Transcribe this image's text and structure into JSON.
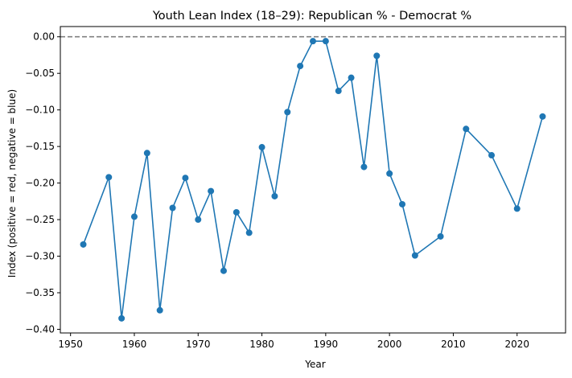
{
  "chart_data": {
    "type": "line",
    "title": "Youth Lean Index (18–29): Republican % - Democrat %",
    "xlabel": "Year",
    "ylabel": "Index (positive = red, negative = blue)",
    "xlim": [
      1948.4,
      2027.6
    ],
    "ylim": [
      -0.405,
      0.014
    ],
    "xticks": [
      1950,
      1960,
      1970,
      1980,
      1990,
      2000,
      2010,
      2020
    ],
    "yticks": [
      0.0,
      -0.05,
      -0.1,
      -0.15,
      -0.2,
      -0.25,
      -0.3,
      -0.35,
      -0.4
    ],
    "ytick_labels": [
      "0.00",
      "−0.05",
      "−0.10",
      "−0.15",
      "−0.20",
      "−0.25",
      "−0.30",
      "−0.35",
      "−0.40"
    ],
    "reference_line": {
      "y": 0.0,
      "style": "dashed",
      "color": "#808080"
    },
    "series": [
      {
        "color": "#1f77b4",
        "marker": "circle",
        "x": [
          1952,
          1956,
          1958,
          1960,
          1962,
          1964,
          1966,
          1968,
          1970,
          1972,
          1974,
          1976,
          1978,
          1980,
          1982,
          1984,
          1986,
          1988,
          1990,
          1992,
          1994,
          1996,
          1998,
          2000,
          2002,
          2004,
          2008,
          2012,
          2016,
          2020,
          2024
        ],
        "y": [
          -0.284,
          -0.192,
          -0.385,
          -0.246,
          -0.159,
          -0.374,
          -0.234,
          -0.193,
          -0.25,
          -0.211,
          -0.32,
          -0.24,
          -0.268,
          -0.151,
          -0.218,
          -0.103,
          -0.04,
          -0.006,
          -0.006,
          -0.074,
          -0.056,
          -0.178,
          -0.026,
          -0.187,
          -0.229,
          -0.299,
          -0.273,
          -0.126,
          -0.162,
          -0.235,
          -0.109
        ]
      }
    ]
  }
}
